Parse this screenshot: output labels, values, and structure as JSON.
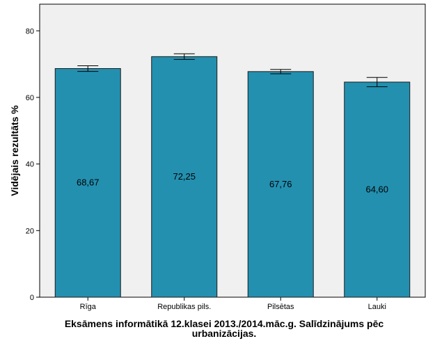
{
  "chart_data": {
    "type": "bar",
    "title": "",
    "xlabel_lines": [
      "Eksāmens informātikā 12.klasei 2013./2014.māc.g. Salīdzinājums pēc",
      "urbanizācijas."
    ],
    "ylabel": "Vidējais rezultāts %",
    "categories": [
      "Rīga",
      "Republikas pils.",
      "Pilsētas",
      "Lauki"
    ],
    "values": [
      68.67,
      72.25,
      67.76,
      64.6
    ],
    "value_labels": [
      "68,67",
      "72,25",
      "67,76",
      "64,60"
    ],
    "error_low": [
      67.8,
      71.4,
      67.1,
      63.2
    ],
    "error_high": [
      69.5,
      73.1,
      68.4,
      66.0
    ],
    "ylim": [
      0,
      88
    ],
    "yticks": [
      0,
      20,
      40,
      60,
      80
    ],
    "grid": false,
    "colors": {
      "bar_fill": "#2390b0",
      "bar_stroke": "#1a1a1a",
      "plot_background": "#f0f0f0",
      "plot_border": "#000000"
    }
  }
}
